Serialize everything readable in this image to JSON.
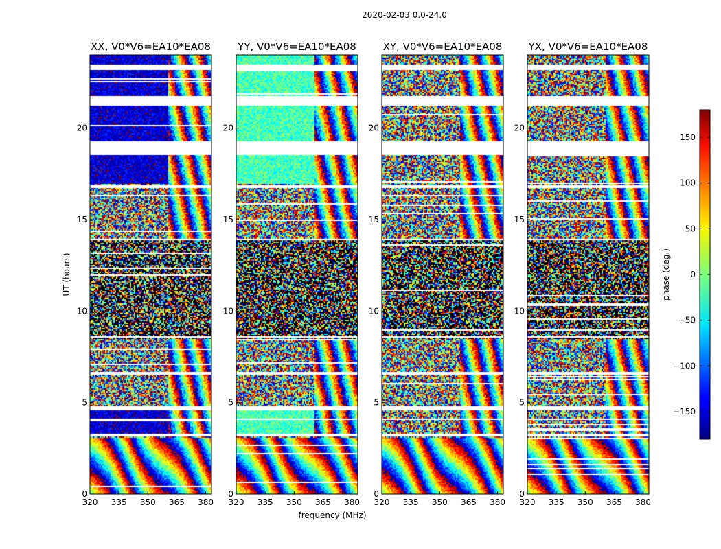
{
  "chart_data": {
    "type": "heatmap",
    "suptitle": "2020-02-03 0.0-24.0",
    "xlabel": "frequency (MHz)",
    "ylabel": "UT (hours)",
    "xlim": [
      320,
      383
    ],
    "ylim": [
      0,
      24
    ],
    "xticks": [
      320,
      335,
      350,
      365,
      380
    ],
    "yticks": [
      0,
      5,
      10,
      15,
      20
    ],
    "colorbar": {
      "label": "phase (deg.)",
      "colormap": "jet",
      "vmin": -180,
      "vmax": 180,
      "ticks": [
        150,
        100,
        50,
        0,
        -50,
        -100,
        -150
      ],
      "tick_labels": [
        "150",
        "100",
        "50",
        "0",
        "−50",
        "−100",
        "−150"
      ]
    },
    "flagged_ut_ranges": [
      [
        3.2,
        3.3
      ],
      [
        4.1,
        4.2
      ],
      [
        4.6,
        4.8
      ],
      [
        6.6,
        6.7
      ],
      [
        8.6,
        8.7
      ],
      [
        13.9,
        14.0
      ],
      [
        16.8,
        16.9
      ],
      [
        18.6,
        19.3
      ],
      [
        21.3,
        21.8
      ],
      [
        23.2,
        23.5
      ]
    ],
    "panels": [
      {
        "title": "XX, V0*V6=EA10*EA08",
        "pol": "XX",
        "show_yticks": true,
        "dominant_phase": -150
      },
      {
        "title": "YY, V0*V6=EA10*EA08",
        "pol": "YY",
        "show_yticks": true,
        "dominant_phase": -20
      },
      {
        "title": "XY, V0*V6=EA10*EA08",
        "pol": "XY",
        "show_yticks": true,
        "dominant_phase": null
      },
      {
        "title": "YX, V0*V6=EA10*EA08",
        "pol": "YX",
        "show_yticks": true,
        "dominant_phase": null
      }
    ]
  }
}
